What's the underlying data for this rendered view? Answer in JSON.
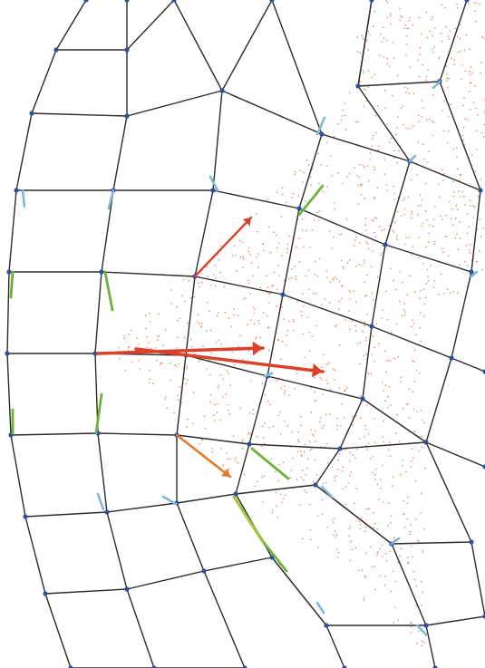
{
  "diagram": {
    "type": "deformed-mesh-vector-field",
    "colors": {
      "background": "#ffffff",
      "mesh_line": "#2b2b2b",
      "node": "#2f4f9a",
      "particles": "#e0583a",
      "vector_red": "#d9412a",
      "vector_orange": "#e07b2a",
      "vector_green": "#6cb23c",
      "vector_yellow_green": "#a4c33a",
      "vector_light_blue": "#7fb8d8"
    },
    "vector_groups": [
      "red",
      "orange",
      "green",
      "yellow-green",
      "light-blue"
    ]
  }
}
